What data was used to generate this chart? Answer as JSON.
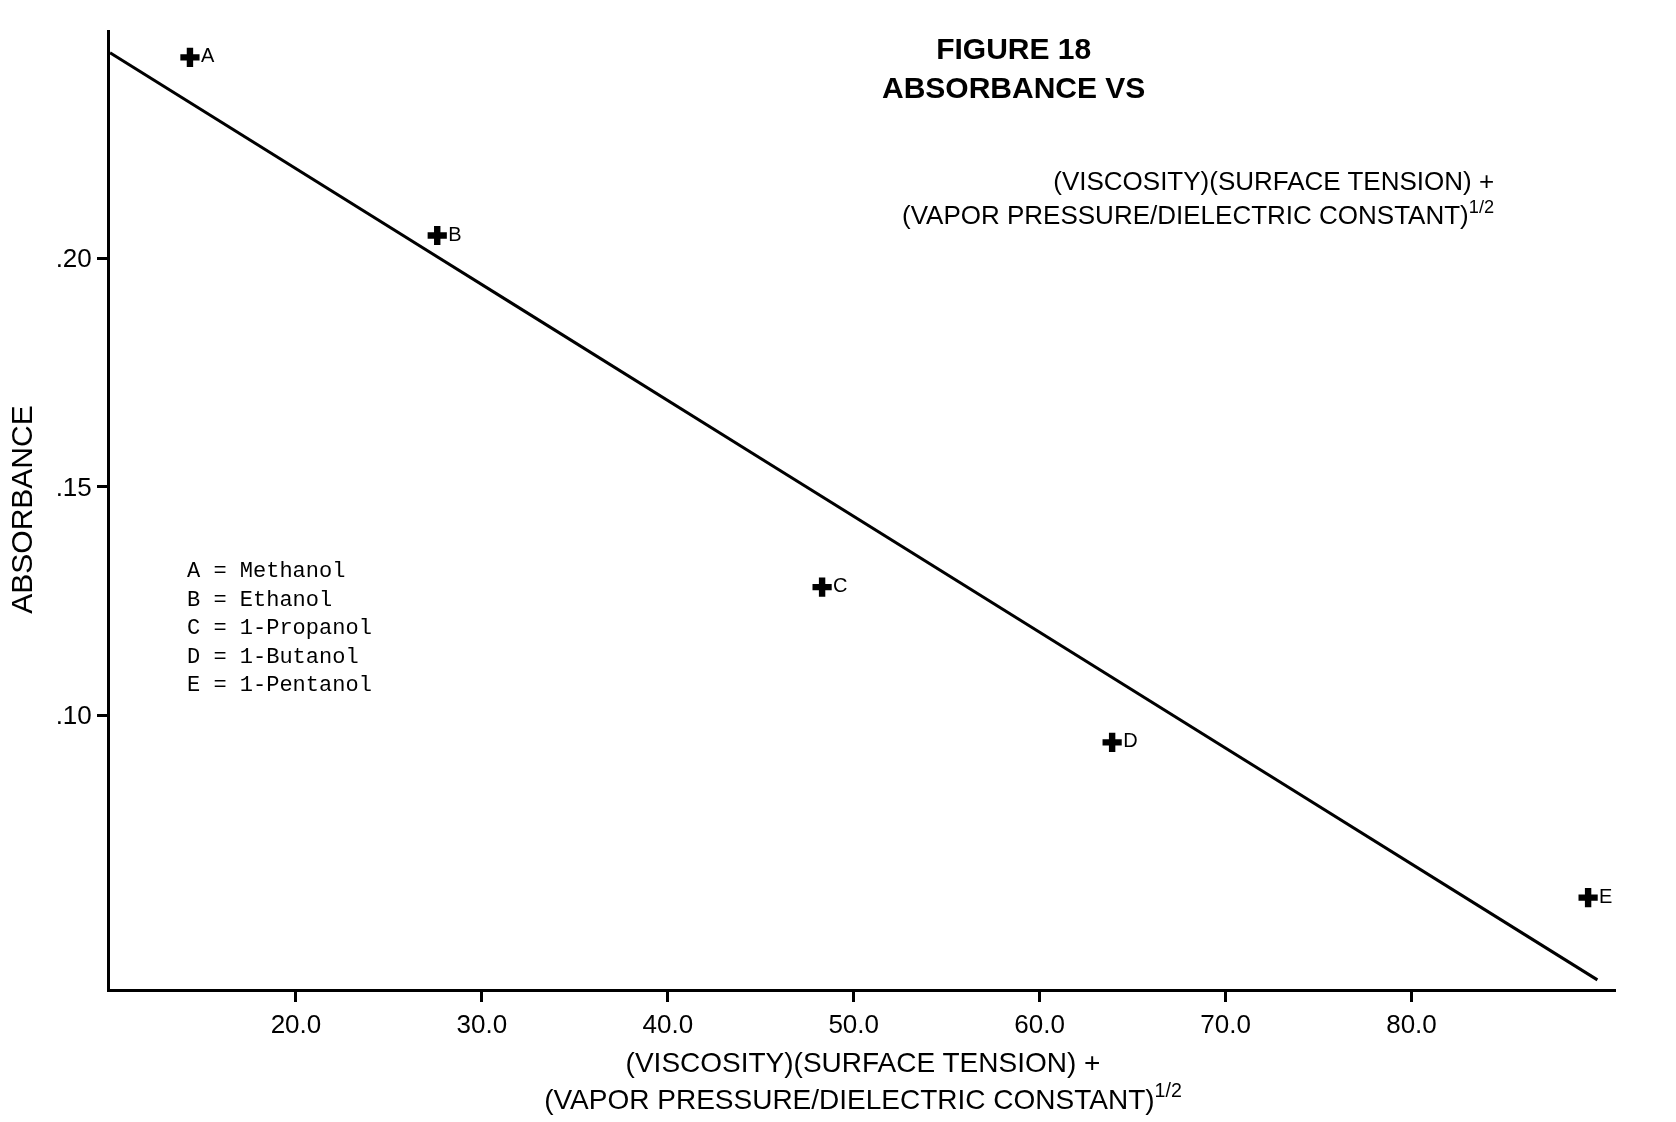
{
  "chart_data": {
    "type": "scatter",
    "title": "FIGURE 18\nABSORBANCE VS",
    "subtitle": "(VISCOSITY)(SURFACE TENSION) +\n(VAPOR PRESSURE/DIELECTRIC CONSTANT)$^{1/2}$",
    "xlabel": "(VISCOSITY)(SURFACE TENSION) +\n(VAPOR PRESSURE/DIELECTRIC CONSTANT)$^{1/2}$",
    "ylabel": "ABSORBANCE",
    "annotations": [
      "A = Methanol\nB = Ethanol\nC = 1-Propanol\nD = 1-Butanol\nE = 1-Pentanol"
    ],
    "series": [
      {
        "color": "#000000",
        "x": [
          14.3,
          27.6,
          48.3,
          63.9,
          89.5
        ],
        "values": [
          0.244,
          0.205,
          0.128,
          0.094,
          0.06
        ],
        "value_labels": [
          "A",
          "B",
          "C",
          "D",
          "E"
        ],
        "marker": "cross"
      },
      {
        "type": "line",
        "color": "#000000",
        "x": [
          10,
          90
        ],
        "values": [
          0.245,
          0.042
        ],
        "line_style": "solid"
      }
    ],
    "xlim": [
      10,
      91
    ],
    "ylim": [
      0.04,
      0.25
    ],
    "xticks": [
      {
        "value": 20,
        "label": "20.0"
      },
      {
        "value": 30,
        "label": "30.0"
      },
      {
        "value": 40,
        "label": "40.0"
      },
      {
        "value": 50,
        "label": "50.0"
      },
      {
        "value": 60,
        "label": "60.0"
      },
      {
        "value": 70,
        "label": "70.0"
      },
      {
        "value": 80,
        "label": "80.0"
      }
    ],
    "yticks": [
      {
        "value": 0.1,
        "label": ".10"
      },
      {
        "value": 0.15,
        "label": ".15"
      },
      {
        "value": 0.2,
        "label": ".20"
      }
    ]
  }
}
